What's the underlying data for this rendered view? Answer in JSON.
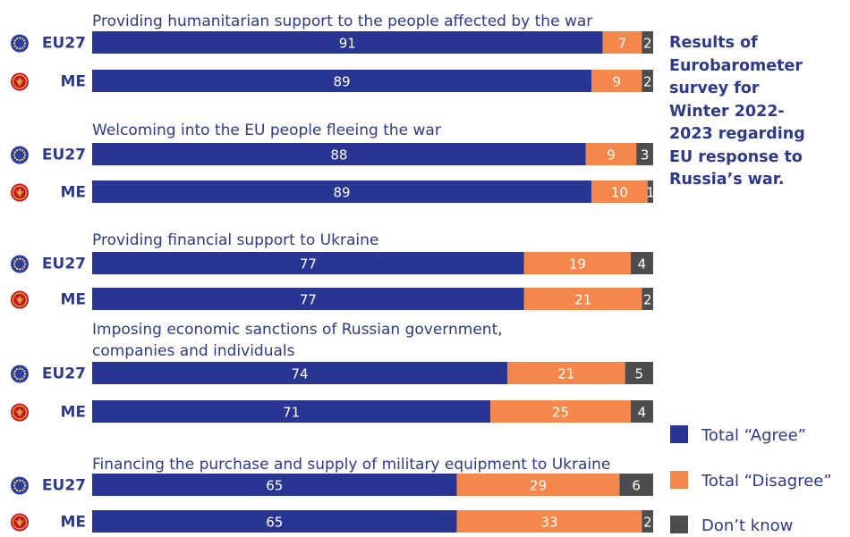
{
  "description": {
    "lines": [
      "Results of",
      "Eurobarometer",
      "survey for",
      "Winter 2022-",
      "2023 regarding",
      "EU response to",
      "Russia’s war."
    ]
  },
  "chart_data": {
    "type": "bar",
    "orientation": "horizontal",
    "stacked": true,
    "groups": [
      {
        "label": "Providing humanitarian support to the people affected by the war",
        "rows": [
          {
            "entity": "EU27",
            "agree": 91,
            "disagree": 7,
            "dont_know": 2
          },
          {
            "entity": "ME",
            "agree": 89,
            "disagree": 9,
            "dont_know": 2
          }
        ]
      },
      {
        "label": "Welcoming into the EU people fleeing the war",
        "rows": [
          {
            "entity": "EU27",
            "agree": 88,
            "disagree": 9,
            "dont_know": 3
          },
          {
            "entity": "ME",
            "agree": 89,
            "disagree": 10,
            "dont_know": 1
          }
        ]
      },
      {
        "label": "Providing financial support to Ukraine",
        "rows": [
          {
            "entity": "EU27",
            "agree": 77,
            "disagree": 19,
            "dont_know": 4
          },
          {
            "entity": "ME",
            "agree": 77,
            "disagree": 21,
            "dont_know": 2
          }
        ]
      },
      {
        "label": "Imposing economic sanctions of Russian government,\ncompanies and individuals",
        "rows": [
          {
            "entity": "EU27",
            "agree": 74,
            "disagree": 21,
            "dont_know": 5
          },
          {
            "entity": "ME",
            "agree": 71,
            "disagree": 25,
            "dont_know": 4
          }
        ]
      },
      {
        "label": "Financing the purchase and supply of military equipment to Ukraine",
        "rows": [
          {
            "entity": "EU27",
            "agree": 65,
            "disagree": 29,
            "dont_know": 6
          },
          {
            "entity": "ME",
            "agree": 65,
            "disagree": 33,
            "dont_know": 2
          }
        ]
      }
    ],
    "legend": [
      {
        "key": "agree",
        "label": "Total “Agree”",
        "color": "#283593"
      },
      {
        "key": "disagree",
        "label": "Total “Disagree”",
        "color": "#f4874b"
      },
      {
        "key": "dont_know",
        "label": "Don’t know",
        "color": "#4d4d4f"
      }
    ],
    "legend_position": "bottom-right",
    "xlim": [
      0,
      100
    ],
    "icons": {
      "EU27": "eu-flag-icon",
      "ME": "montenegro-flag-icon"
    }
  }
}
